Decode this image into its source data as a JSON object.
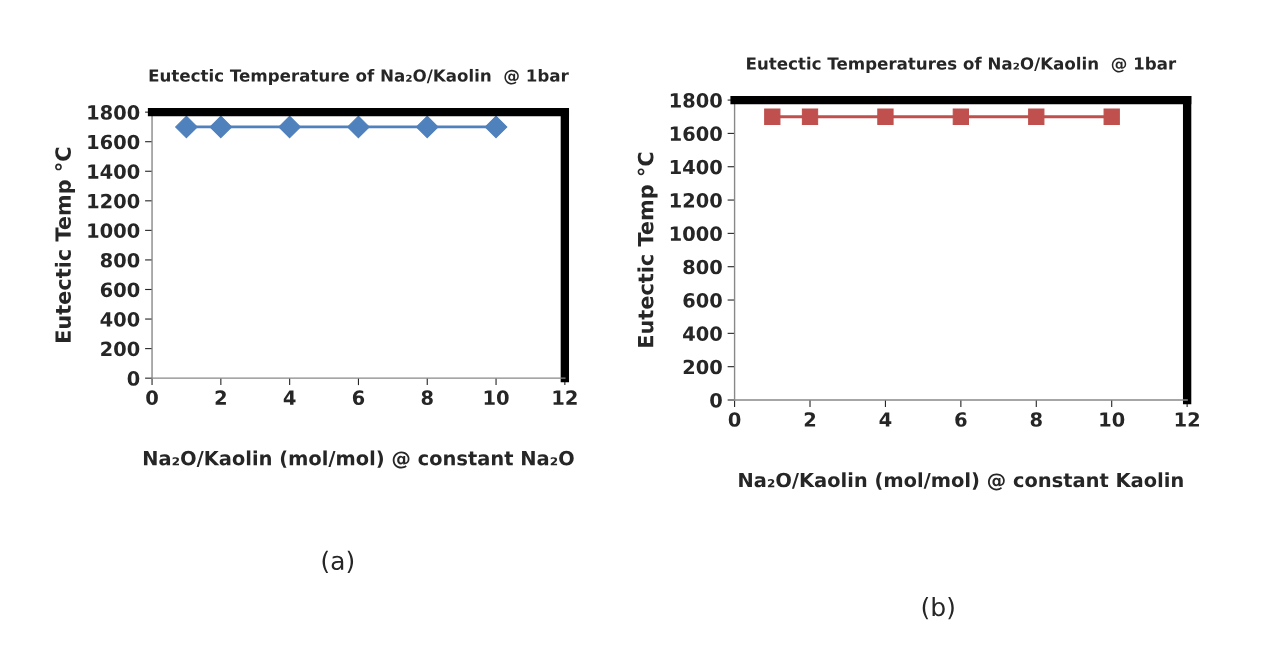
{
  "chart_data": [
    {
      "type": "line",
      "title": "Eutectic Temperature of Na₂O/Kaolin  @ 1bar",
      "xlabel": "Na₂O/Kaolin (mol/mol) @ constant Na₂O",
      "ylabel": "Eutectic Temp °C",
      "x": [
        1,
        2,
        4,
        6,
        8,
        10
      ],
      "series": [
        {
          "color": "#4f81bd",
          "values": [
            1700,
            1700,
            1700,
            1700,
            1700,
            1700
          ]
        }
      ],
      "marker": "diamond",
      "xlim": [
        0,
        12
      ],
      "xticks": [
        0,
        2,
        4,
        6,
        8,
        10,
        12
      ],
      "ylim": [
        0,
        1800
      ],
      "yticks": [
        0,
        200,
        400,
        600,
        800,
        1000,
        1200,
        1400,
        1600,
        1800
      ],
      "grid": false,
      "annotations": [
        "(a)"
      ]
    },
    {
      "type": "line",
      "title": "Eutectic Temperatures of Na₂O/Kaolin  @ 1bar",
      "xlabel": "Na₂O/Kaolin (mol/mol) @ constant Kaolin",
      "ylabel": "Eutectic Temp °C",
      "x": [
        1,
        2,
        4,
        6,
        8,
        10
      ],
      "series": [
        {
          "color": "#c0504d",
          "values": [
            1700,
            1700,
            1700,
            1700,
            1700,
            1700
          ]
        }
      ],
      "marker": "square",
      "xlim": [
        0,
        12
      ],
      "xticks": [
        0,
        2,
        4,
        6,
        8,
        10,
        12
      ],
      "ylim": [
        0,
        1800
      ],
      "yticks": [
        0,
        200,
        400,
        600,
        800,
        1000,
        1200,
        1400,
        1600,
        1800
      ],
      "grid": false,
      "annotations": [
        "(b)"
      ]
    }
  ]
}
